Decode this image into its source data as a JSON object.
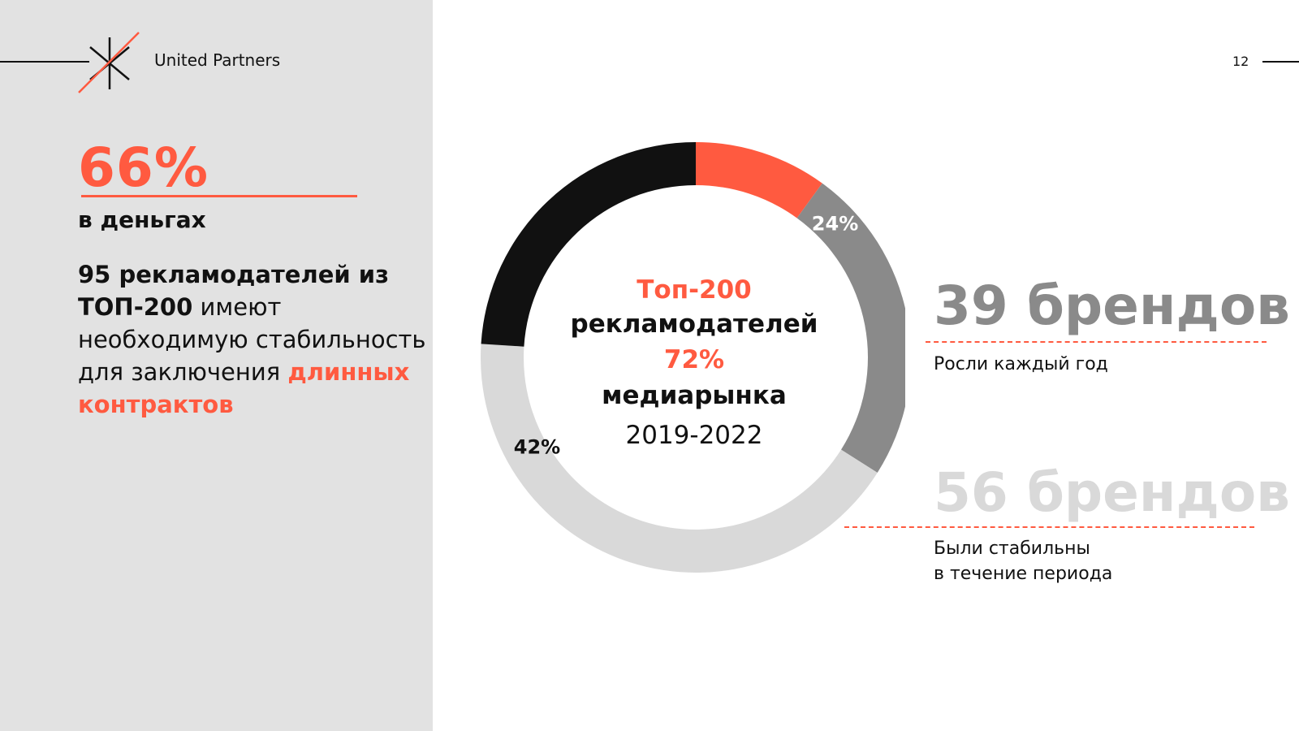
{
  "brand": {
    "name": "United Partners"
  },
  "page_number": "12",
  "left": {
    "big_percent": "66%",
    "money_label": "в деньгах",
    "paragraph": {
      "bold_part": "95 рекламодателей из ТОП-200",
      "normal_part": " имеют необходимую стабильность для заключения ",
      "accent_part": "длинных контрактов"
    }
  },
  "center": {
    "line1": "Топ-200",
    "line2": "рекламодателей",
    "line3": "72%",
    "line4": "медиарынка",
    "line5": "2019-2022"
  },
  "stats": [
    {
      "value": "39 брендов",
      "desc": "Росли каждый год"
    },
    {
      "value": "56 брендов",
      "desc_line1": "Были стабильны",
      "desc_line2": "в течение периода"
    }
  ],
  "colors": {
    "accent": "#ff5a40",
    "black": "#111111",
    "dark_gray": "#8a8a8a",
    "light_gray": "#d9d9d9"
  },
  "chart_data": {
    "type": "pie",
    "title": "",
    "segments": [
      {
        "value": 10,
        "color": "#ff5a40",
        "label": ""
      },
      {
        "value": 24,
        "color": "#8a8a8a",
        "label": "24%"
      },
      {
        "value": 42,
        "color": "#d9d9d9",
        "label": "42%"
      },
      {
        "value": 24,
        "color": "#111111",
        "label": ""
      }
    ]
  }
}
